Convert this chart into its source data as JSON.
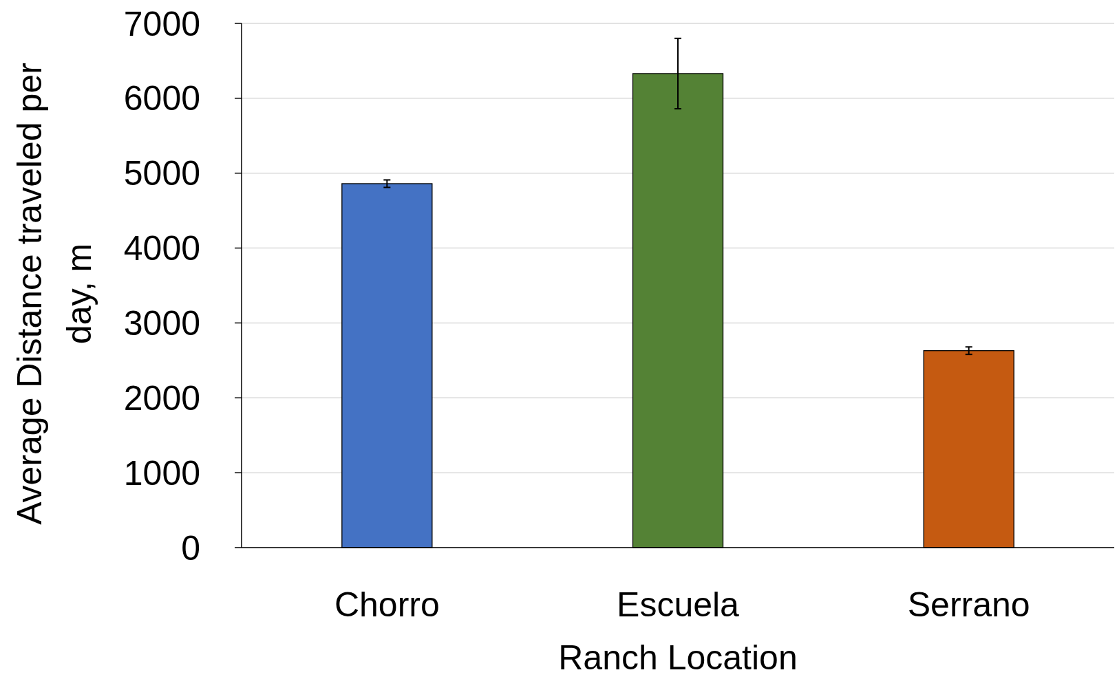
{
  "chart_data": {
    "type": "bar",
    "xlabel": "Ranch Location",
    "ylabel": "Average Distance traveled per\nday, m",
    "categories": [
      "Chorro",
      "Escuela",
      "Serrano"
    ],
    "values": [
      4860,
      6330,
      2630
    ],
    "errors": [
      50,
      470,
      50
    ],
    "colors": [
      "#4472c4",
      "#548235",
      "#c55a11"
    ],
    "ylim": [
      0,
      7000
    ],
    "yticks": [
      0,
      1000,
      2000,
      3000,
      4000,
      5000,
      6000,
      7000
    ],
    "grid": "y"
  }
}
